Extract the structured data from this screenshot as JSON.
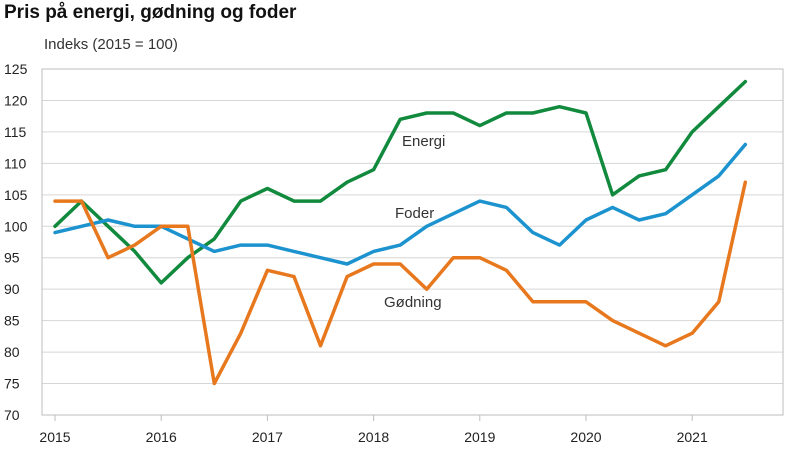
{
  "header": {
    "title": "Pris på energi, gødning og foder",
    "ylabel": "Indeks (2015 = 100)"
  },
  "chart_data": {
    "type": "line",
    "title": "Pris på energi, gødning og foder",
    "ylabel": "Indeks (2015 = 100)",
    "xlabel": "",
    "ylim": [
      70,
      125
    ],
    "yticks": [
      70,
      75,
      80,
      85,
      90,
      95,
      100,
      105,
      110,
      115,
      120,
      125
    ],
    "xlim": [
      2015,
      2022
    ],
    "xticks": [
      "2015",
      "2016",
      "2017",
      "2018",
      "2019",
      "2020",
      "2021"
    ],
    "grid": "horizontal",
    "legend": "inline labels",
    "x": [
      2015.0,
      2015.25,
      2015.5,
      2015.75,
      2016.0,
      2016.25,
      2016.5,
      2016.75,
      2017.0,
      2017.25,
      2017.5,
      2017.75,
      2018.0,
      2018.25,
      2018.5,
      2018.75,
      2019.0,
      2019.25,
      2019.5,
      2019.75,
      2020.0,
      2020.25,
      2020.5,
      2020.75,
      2021.0,
      2021.25,
      2021.5
    ],
    "series": [
      {
        "name": "Energi",
        "color": "#128a3e",
        "values": [
          100,
          104,
          100,
          96,
          91,
          95,
          98,
          104,
          106,
          104,
          104,
          107,
          109,
          117,
          118,
          118,
          116,
          118,
          118,
          119,
          118,
          105,
          108,
          109,
          115,
          119,
          123
        ]
      },
      {
        "name": "Foder",
        "color": "#1c93cf",
        "values": [
          99,
          100,
          101,
          100,
          100,
          98,
          96,
          97,
          97,
          96,
          95,
          94,
          96,
          97,
          100,
          102,
          104,
          103,
          99,
          97,
          101,
          103,
          101,
          102,
          105,
          108,
          113
        ]
      },
      {
        "name": "Gødning",
        "color": "#e8781e",
        "values": [
          104,
          104,
          95,
          97,
          100,
          100,
          75,
          83,
          93,
          92,
          81,
          92,
          94,
          94,
          90,
          95,
          95,
          93,
          88,
          88,
          88,
          85,
          83,
          81,
          83,
          88,
          107
        ]
      }
    ]
  }
}
